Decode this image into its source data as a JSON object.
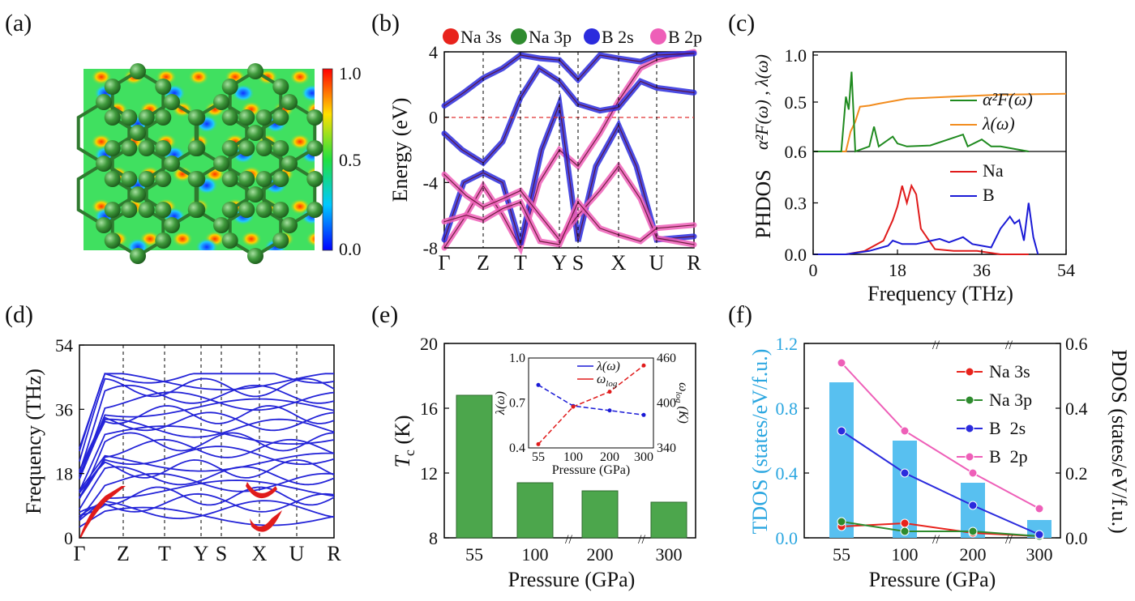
{
  "panel_labels": [
    "(a)",
    "(b)",
    "(c)",
    "(d)",
    "(e)",
    "(f)"
  ],
  "colors": {
    "na3s": "#e8231c",
    "na3p": "#2e8b2e",
    "b2s": "#2b2bdd",
    "b2p": "#ee5fb8",
    "a2f": "#1f8a1f",
    "lambda": "#f28c1e",
    "na": "#e01b1b",
    "b": "#1a1ad6",
    "bar_green": "#4ca64c",
    "bar_blue": "#58c0f0",
    "tdos_label": "#2aa6e0"
  },
  "chart_data": [
    {
      "id": "a",
      "type": "heatmap",
      "title": "",
      "colorbar": {
        "min": 0.0,
        "max": 1.0,
        "ticks": [
          "1.0",
          "0.5",
          "0.0"
        ]
      }
    },
    {
      "id": "b",
      "type": "line",
      "title": "",
      "xlabel": "",
      "ylabel": "Energy (eV)",
      "ylim": [
        -8,
        4
      ],
      "yticks": [
        "4",
        "0",
        "-4",
        "-8"
      ],
      "k_points": [
        "Γ",
        "Z",
        "T",
        "Y",
        "S",
        "X",
        "U",
        "R"
      ],
      "legend": [
        "Na 3s",
        "Na 3p",
        "B  2s",
        "B  2p"
      ],
      "fermi_level": 0
    },
    {
      "id": "c",
      "type": "line",
      "xlabel": "Frequency (THz)",
      "xlim": [
        0,
        54
      ],
      "xticks": [
        "0",
        "18",
        "36",
        "54"
      ],
      "top": {
        "ylabel": "α²F(ω) , λ(ω)",
        "yticks": [
          "1.0",
          "0.5",
          "0.6"
        ],
        "legend": [
          "α²F(ω)",
          "λ(ω)"
        ],
        "lambda": {
          "x": [
            0,
            7,
            8,
            9,
            10,
            12,
            14,
            20,
            30,
            40,
            54
          ],
          "y": [
            0,
            0,
            0.2,
            0.3,
            0.45,
            0.46,
            0.48,
            0.53,
            0.55,
            0.57,
            0.58
          ]
        },
        "a2f": {
          "x": [
            0,
            6,
            7,
            7.6,
            8.2,
            9,
            12,
            13,
            14,
            17,
            18,
            20,
            25,
            32,
            33,
            36,
            38,
            40,
            46
          ],
          "y": [
            0,
            0,
            0.55,
            0.42,
            0.8,
            0,
            0.05,
            0.25,
            0.05,
            0.15,
            0.08,
            0.05,
            0.06,
            0.17,
            0.05,
            0.12,
            0.05,
            0.05,
            0
          ]
        }
      },
      "bottom": {
        "ylabel": "PHDOS",
        "yticks": [
          "0.0",
          "0.3",
          "0.6"
        ],
        "legend": [
          "Na",
          "B"
        ],
        "na": {
          "x": [
            0,
            7,
            11,
            15,
            17,
            18,
            19,
            20,
            21,
            22,
            23,
            26,
            30,
            35,
            40,
            46
          ],
          "y": [
            0,
            0,
            0.02,
            0.08,
            0.2,
            0.28,
            0.4,
            0.3,
            0.4,
            0.35,
            0.15,
            0.03,
            0.02,
            0.02,
            0,
            0
          ]
        },
        "b": {
          "x": [
            0,
            7,
            12,
            16,
            17,
            19,
            22,
            27,
            29,
            32,
            34,
            38,
            40,
            42,
            43,
            44,
            45,
            46,
            47,
            48
          ],
          "y": [
            0,
            0,
            0.02,
            0.05,
            0.08,
            0.06,
            0.06,
            0.09,
            0.07,
            0.1,
            0.06,
            0.04,
            0.15,
            0.22,
            0.18,
            0.2,
            0.08,
            0.3,
            0.1,
            0
          ]
        }
      }
    },
    {
      "id": "d",
      "type": "line",
      "ylabel": "Frequency (THz)",
      "ylim": [
        0,
        54
      ],
      "yticks": [
        "0",
        "18",
        "36",
        "54"
      ],
      "k_points": [
        "Γ",
        "Z",
        "T",
        "Y",
        "S",
        "X",
        "U",
        "R"
      ]
    },
    {
      "id": "e",
      "type": "bar",
      "xlabel": "Pressure (GPa)",
      "ylabel": "T",
      "ylabel_sub": "c",
      "ylabel_unit": " (K)",
      "categories": [
        "55",
        "100",
        "200",
        "300"
      ],
      "values": [
        16.8,
        11.4,
        10.9,
        10.2
      ],
      "ylim": [
        8,
        20
      ],
      "yticks": [
        "8",
        "12",
        "16",
        "20"
      ],
      "inset": {
        "xlabel": "Pressure (GPa)",
        "ylabel_left": "λ(ω)",
        "ylabel_right": "ω",
        "ylabel_right_sub": "log",
        "ylabel_right_unit": " (K)",
        "x": [
          "55",
          "100",
          "200",
          "300"
        ],
        "ylim_left": [
          0.4,
          1.0
        ],
        "ylim_right": [
          340,
          460
        ],
        "yticks_left": [
          "0.4",
          "0.7",
          "1.0"
        ],
        "yticks_right": [
          "340",
          "400",
          "460"
        ],
        "lambda": [
          0.82,
          0.68,
          0.65,
          0.62
        ],
        "omega_log": [
          345,
          395,
          415,
          450
        ],
        "legend": [
          "λ(ω)",
          "ω"
        ],
        "legend_sub": "log"
      }
    },
    {
      "id": "f",
      "type": "bar",
      "xlabel": "Pressure (GPa)",
      "ylabel_left": "TDOS (states/eV/f.u.)",
      "ylabel_right": "PDOS (states/eV/f.u.)",
      "categories": [
        "55",
        "100",
        "200",
        "300"
      ],
      "tdos": [
        0.96,
        0.6,
        0.34,
        0.11
      ],
      "ylim_left": [
        0,
        1.2
      ],
      "ylim_right": [
        0,
        0.6
      ],
      "yticks_left": [
        "0.0",
        "0.4",
        "0.8",
        "1.2"
      ],
      "yticks_right": [
        "0.0",
        "0.2",
        "0.4",
        "0.6"
      ],
      "series": [
        {
          "name": "Na 3s",
          "values": [
            0.035,
            0.045,
            0.015,
            0.005
          ]
        },
        {
          "name": "Na 3p",
          "values": [
            0.05,
            0.02,
            0.02,
            0.005
          ]
        },
        {
          "name": "B  2s",
          "values": [
            0.33,
            0.2,
            0.1,
            0.01
          ]
        },
        {
          "name": "B  2p",
          "values": [
            0.54,
            0.33,
            0.2,
            0.09
          ]
        }
      ]
    }
  ]
}
